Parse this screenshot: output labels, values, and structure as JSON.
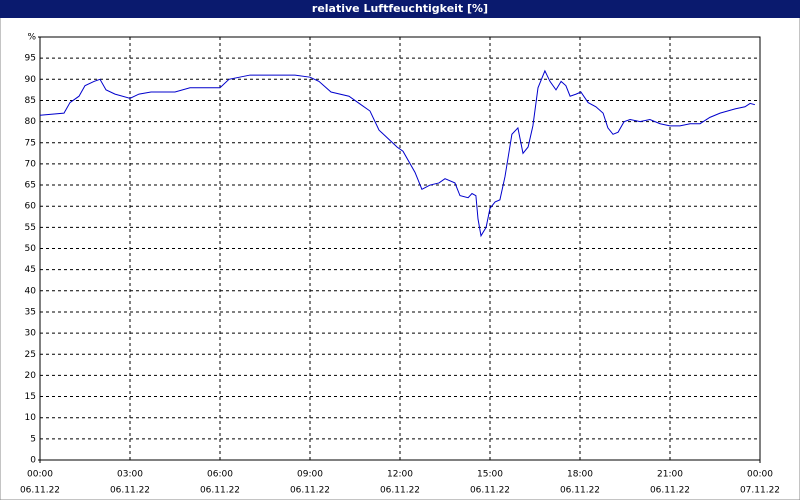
{
  "chart_data": {
    "type": "line",
    "title": "relative Luftfeuchtigkeit [%]",
    "series": [
      {
        "color": "#0000cc",
        "x": [
          0,
          0.8,
          1.0,
          1.3,
          1.5,
          1.8,
          2.0,
          2.2,
          2.5,
          3.0,
          3.3,
          3.7,
          4.5,
          5.0,
          6.0,
          6.3,
          7.0,
          8.5,
          9.0,
          9.3,
          9.7,
          10.3,
          10.7,
          11.0,
          11.3,
          11.6,
          11.9,
          12.1,
          12.5,
          12.73,
          13.0,
          13.3,
          13.5,
          13.83,
          14.0,
          14.27,
          14.4,
          14.53,
          14.6,
          14.7,
          14.87,
          15.0,
          15.17,
          15.33,
          15.5,
          15.73,
          15.93,
          16.1,
          16.27,
          16.43,
          16.6,
          16.83,
          17.0,
          17.2,
          17.37,
          17.53,
          17.67,
          17.87,
          18.03,
          18.27,
          18.53,
          18.77,
          18.93,
          19.1,
          19.27,
          19.47,
          19.67,
          20.0,
          20.33,
          20.67,
          21.0,
          21.33,
          21.67,
          22.0,
          22.33,
          22.67,
          23.17,
          23.5,
          23.67,
          23.83
        ],
        "values": [
          81.5,
          82,
          84.5,
          86,
          88.5,
          89.5,
          90,
          87.5,
          86.5,
          85.5,
          86.5,
          87,
          87,
          88,
          88,
          90,
          91,
          91,
          90.5,
          89.5,
          87,
          86,
          84,
          82.5,
          78,
          76,
          74,
          73,
          68,
          64,
          65,
          65.5,
          66.5,
          65.5,
          62.5,
          62,
          63,
          62.5,
          57,
          53,
          55,
          59.5,
          61,
          61.5,
          67,
          77,
          78.5,
          72.5,
          74,
          79,
          88,
          92,
          89.5,
          87.5,
          89.5,
          88.5,
          86,
          86.5,
          87,
          84.5,
          83.5,
          82,
          78.5,
          77,
          77.5,
          80,
          80.5,
          80,
          80.5,
          79.5,
          79,
          79,
          79.5,
          79.5,
          81,
          82,
          83,
          83.5,
          84.3,
          84
        ]
      }
    ],
    "xlim": [
      0,
      24
    ],
    "xticks": [
      {
        "value": 0,
        "label": "00:00",
        "sublabel": "06.11.22"
      },
      {
        "value": 3,
        "label": "03:00",
        "sublabel": "06.11.22"
      },
      {
        "value": 6,
        "label": "06:00",
        "sublabel": "06.11.22"
      },
      {
        "value": 9,
        "label": "09:00",
        "sublabel": "06.11.22"
      },
      {
        "value": 12,
        "label": "12:00",
        "sublabel": "06.11.22"
      },
      {
        "value": 15,
        "label": "15:00",
        "sublabel": "06.11.22"
      },
      {
        "value": 18,
        "label": "18:00",
        "sublabel": "06.11.22"
      },
      {
        "value": 21,
        "label": "21:00",
        "sublabel": "06.11.22"
      },
      {
        "value": 24,
        "label": "00:00",
        "sublabel": "07.11.22"
      }
    ],
    "ylim": [
      0,
      100
    ],
    "yticks": [
      0,
      5,
      10,
      15,
      20,
      25,
      30,
      35,
      40,
      45,
      50,
      55,
      60,
      65,
      70,
      75,
      80,
      85,
      90,
      95,
      {
        "value": 100,
        "label": "%"
      }
    ],
    "grid": true
  }
}
